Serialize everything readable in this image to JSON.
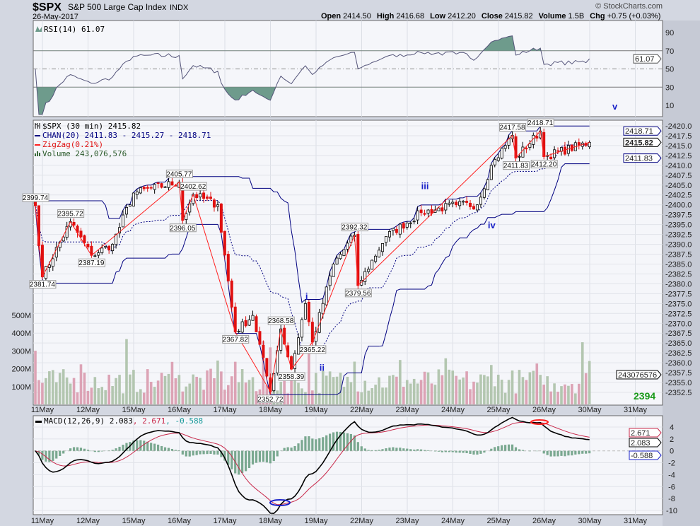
{
  "header": {
    "symbol": "$SPX",
    "name": "S&P 500 Large Cap Index",
    "exchange": "INDX",
    "date": "26-May-2017",
    "copyright": "© StockCharts.com",
    "quote": [
      {
        "k": "Open",
        "v": "2414.50"
      },
      {
        "k": "High",
        "v": "2416.68"
      },
      {
        "k": "Low",
        "v": "2412.20"
      },
      {
        "k": "Close",
        "v": "2415.82"
      },
      {
        "k": "Volume",
        "v": "1.5B"
      },
      {
        "k": "Chg",
        "v": "+0.75 (+0.03%)"
      }
    ]
  },
  "colors": {
    "up": "#000000",
    "down": "#e01010",
    "channel": "#000080",
    "zigzag": "#ff2020",
    "vol_up": "#b3c6b0",
    "vol_down": "#dca3b5",
    "rsi_fill": "#6e9b8c",
    "macd_signal": "#c8284a",
    "wave": "#1a22c8",
    "green": "#1a9a1a"
  },
  "chart_data": {
    "type": "candlestick",
    "title": "$SPX (30 min) 2415.82",
    "legend": {
      "price": "$SPX (30 min) 2415.82",
      "chan": "CHAN(20) 2411.83 - 2415.27 - 2418.71",
      "zigzag": "ZigZag(0.21%)",
      "volume": "Volume 243,076,576",
      "rsi": "RSI(14) 61.07",
      "macd_main": "MACD(12,26,9) 2.083",
      "macd_signal": ", 2.671",
      "macd_hist": ", -0.588"
    },
    "x_dates": [
      "11May",
      "12May",
      "15May",
      "16May",
      "17May",
      "18May",
      "19May",
      "22May",
      "23May",
      "24May",
      "25May",
      "26May",
      "30May",
      "31May"
    ],
    "bars_per_day": 13,
    "price_ticks": [
      "2420.0",
      "2417.5",
      "2415.0",
      "2412.5",
      "2410.0",
      "2407.5",
      "2405.0",
      "2402.5",
      "2400.0",
      "2397.5",
      "2395.0",
      "2392.5",
      "2390.0",
      "2387.5",
      "2385.0",
      "2382.5",
      "2380.0",
      "2377.5",
      "2375.0",
      "2372.5",
      "2370.0",
      "2367.5",
      "2365.0",
      "2362.5",
      "2360.0",
      "2357.5",
      "2355.0",
      "2352.5"
    ],
    "price_range": [
      2350,
      2421.5
    ],
    "volume_ticks": [
      {
        "label": "100M",
        "v": 100
      },
      {
        "label": "200M",
        "v": 200
      },
      {
        "label": "300M",
        "v": 300
      },
      {
        "label": "400M",
        "v": 400
      },
      {
        "label": "500M",
        "v": 500
      }
    ],
    "rsi_ticks": [
      90,
      70,
      50,
      30,
      10
    ],
    "macd_ticks": [
      4,
      2,
      0,
      -2,
      -4,
      -6,
      -8,
      -10
    ],
    "price_tags": [
      {
        "label": "2418.71",
        "v": 2418.71,
        "type": "chan"
      },
      {
        "label": "2415.82",
        "v": 2415.82,
        "type": "last"
      },
      {
        "label": "2411.83",
        "v": 2411.83,
        "type": "chan"
      }
    ],
    "volume_tag": "243076576",
    "rsi_tag": "61.07",
    "macd_tags": [
      {
        "label": "2.671",
        "v": 2.671,
        "c": "#c8284a"
      },
      {
        "label": "2.083",
        "v": 2.083,
        "c": "#000"
      },
      {
        "label": "-0.588",
        "v": -0.588,
        "c": "#1a22c8"
      }
    ],
    "pivots": [
      [
        0,
        2399.74
      ],
      [
        2,
        2381.74
      ],
      [
        10,
        2395.72
      ],
      [
        16,
        2387.19
      ],
      [
        22,
        2390
      ],
      [
        28,
        2403
      ],
      [
        41,
        2405.77
      ],
      [
        42,
        2396.05
      ],
      [
        45,
        2402.62
      ],
      [
        52,
        2400
      ],
      [
        57,
        2367.82
      ],
      [
        62,
        2372
      ],
      [
        67,
        2352.72
      ],
      [
        70,
        2368.58
      ],
      [
        73,
        2358.39
      ],
      [
        77,
        2375
      ],
      [
        79,
        2365.22
      ],
      [
        85,
        2385
      ],
      [
        91,
        2392.32
      ],
      [
        92,
        2379.56
      ],
      [
        100,
        2392
      ],
      [
        110,
        2398
      ],
      [
        120,
        2400
      ],
      [
        126,
        2400
      ],
      [
        130,
        2410
      ],
      [
        136,
        2417.58
      ],
      [
        137,
        2411.83
      ],
      [
        144,
        2418.71
      ],
      [
        145,
        2412.2
      ],
      [
        158,
        2415.82
      ]
    ],
    "zigzag_labels": [
      {
        "text": "2399.74",
        "bar": 0,
        "v": 2399.74,
        "pos": "up"
      },
      {
        "text": "2381.74",
        "bar": 2,
        "v": 2381.74,
        "pos": "down"
      },
      {
        "text": "2395.72",
        "bar": 10,
        "v": 2395.72,
        "pos": "up"
      },
      {
        "text": "2387.19",
        "bar": 16,
        "v": 2387.19,
        "pos": "down"
      },
      {
        "text": "2405.77",
        "bar": 41,
        "v": 2405.77,
        "pos": "up"
      },
      {
        "text": "2402.62",
        "bar": 45,
        "v": 2402.62,
        "pos": "up2"
      },
      {
        "text": "2396.05",
        "bar": 42,
        "v": 2396.05,
        "pos": "down"
      },
      {
        "text": "2367.82",
        "bar": 57,
        "v": 2367.82,
        "pos": "down"
      },
      {
        "text": "2368.58",
        "bar": 70,
        "v": 2368.58,
        "pos": "up"
      },
      {
        "text": "2352.72",
        "bar": 67,
        "v": 2352.72,
        "pos": "down"
      },
      {
        "text": "2358.39",
        "bar": 73,
        "v": 2358.39,
        "pos": "down"
      },
      {
        "text": "2365.22",
        "bar": 79,
        "v": 2365.22,
        "pos": "down"
      },
      {
        "text": "2392.32",
        "bar": 91,
        "v": 2392.32,
        "pos": "up"
      },
      {
        "text": "2379.56",
        "bar": 92,
        "v": 2379.56,
        "pos": "down"
      },
      {
        "text": "2417.58",
        "bar": 136,
        "v": 2417.58,
        "pos": "up"
      },
      {
        "text": "2411.83",
        "bar": 137,
        "v": 2411.83,
        "pos": "down"
      },
      {
        "text": "2418.71",
        "bar": 144,
        "v": 2418.71,
        "pos": "up"
      },
      {
        "text": "2412.20",
        "bar": 145,
        "v": 2412.2,
        "pos": "down"
      }
    ],
    "wave_labels": [
      {
        "text": "i",
        "bar": 77,
        "v": 2376
      },
      {
        "text": "ii",
        "bar": 81,
        "v": 2358
      },
      {
        "text": "iii",
        "bar": 110,
        "v": 2404
      },
      {
        "text": "iv",
        "bar": 129,
        "v": 2394
      }
    ],
    "rsi_wave_label": "v",
    "target_label": "2394"
  }
}
